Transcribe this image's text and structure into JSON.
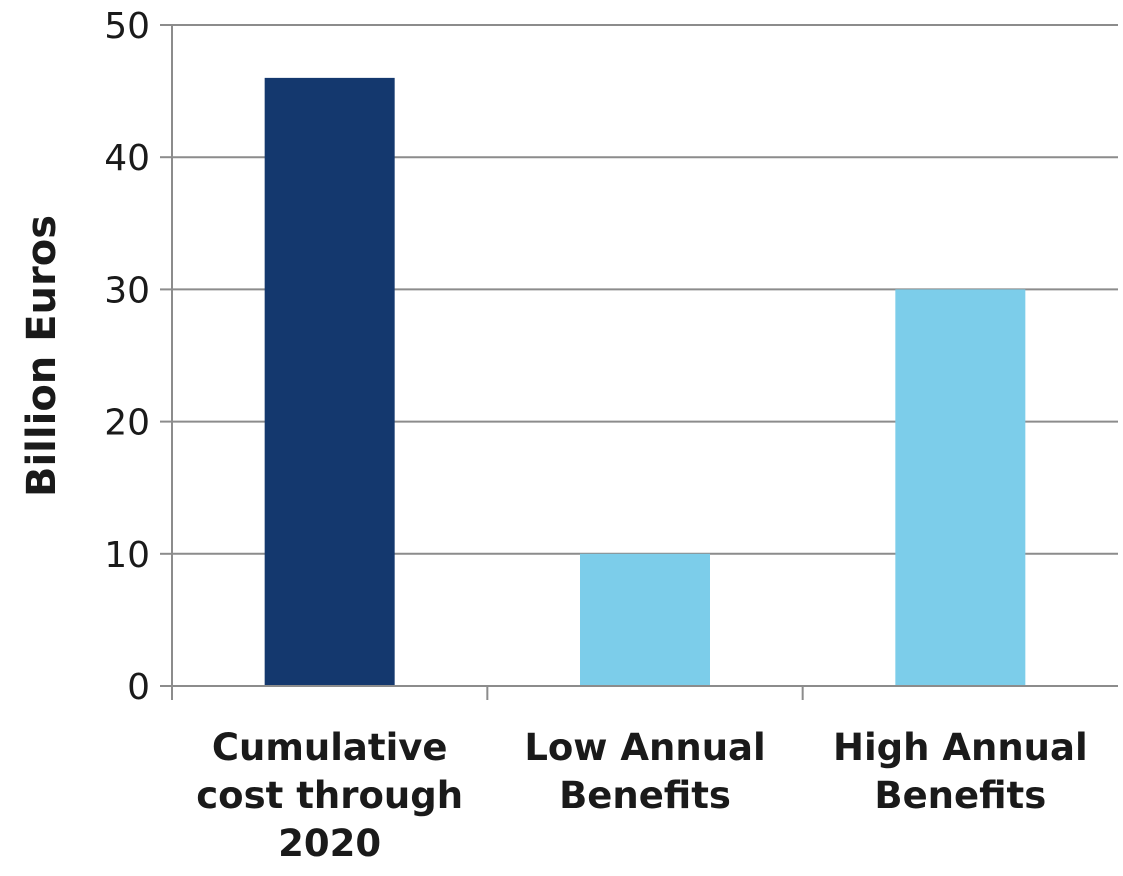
{
  "chart_data": {
    "type": "bar",
    "title": "",
    "xlabel": "",
    "ylabel": "Billion Euros",
    "ylim": [
      0,
      50
    ],
    "yticks": [
      0,
      10,
      20,
      30,
      40,
      50
    ],
    "grid": true,
    "categories": [
      [
        "Cumulative",
        "cost through",
        "2020"
      ],
      [
        "Low Annual",
        "Benefits"
      ],
      [
        "High Annual",
        "Benefits"
      ]
    ],
    "values": [
      46,
      10,
      30
    ],
    "colors": [
      "#14386e",
      "#7ccdea",
      "#7ccdea"
    ]
  }
}
